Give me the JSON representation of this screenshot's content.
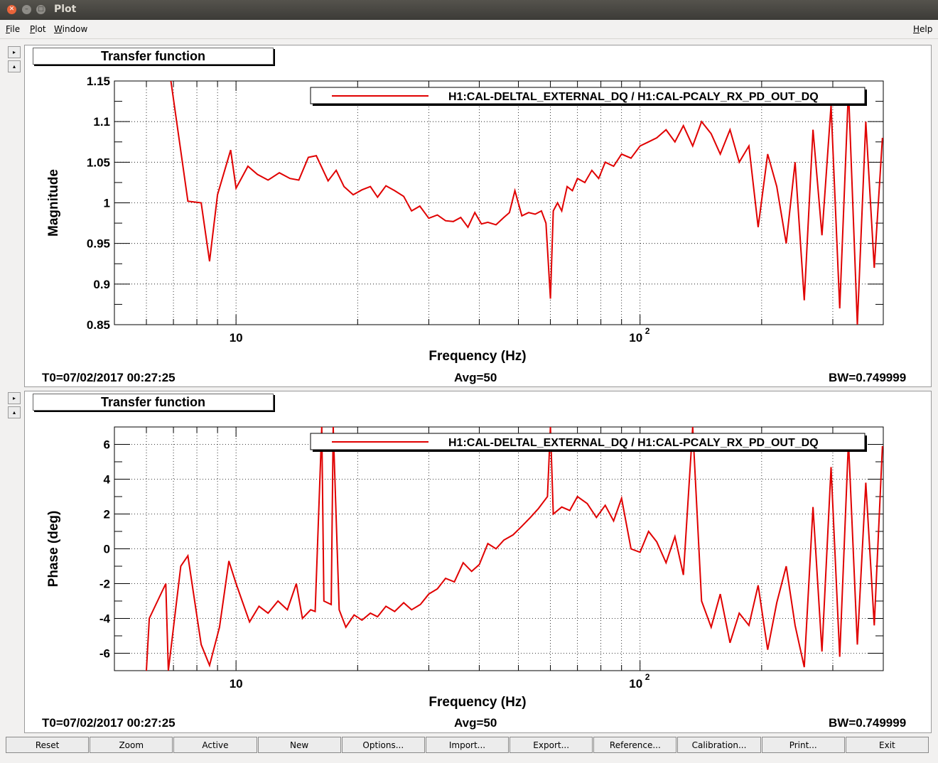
{
  "window": {
    "title": "Plot"
  },
  "menu": {
    "file": "File",
    "plot": "Plot",
    "window": "Window",
    "help": "Help"
  },
  "side_arrows": {
    "right": "▸",
    "up": "▴"
  },
  "colors": {
    "trace": "#e00000",
    "grid": "#000000",
    "background": "#ffffff"
  },
  "panels": [
    {
      "title": "Transfer function",
      "legend": "H1:CAL-DELTAL_EXTERNAL_DQ / H1:CAL-PCALY_RX_PD_OUT_DQ",
      "ylabel": "Magnitude",
      "xlabel": "Frequency (Hz)",
      "t0": "T0=07/02/2017 00:27:25",
      "avg": "Avg=50",
      "bw": "BW=0.749999",
      "ytick_labels": [
        "0.85",
        "0.9",
        "0.95",
        "1",
        "1.05",
        "1.1",
        "1.15"
      ],
      "xtick_labels": [
        "10",
        "10",
        "2"
      ]
    },
    {
      "title": "Transfer function",
      "legend": "H1:CAL-DELTAL_EXTERNAL_DQ / H1:CAL-PCALY_RX_PD_OUT_DQ",
      "ylabel": "Phase (deg)",
      "xlabel": "Frequency (Hz)",
      "t0": "T0=07/02/2017 00:27:25",
      "avg": "Avg=50",
      "bw": "BW=0.749999",
      "ytick_labels": [
        "-6",
        "-4",
        "-2",
        "0",
        "2",
        "4",
        "6"
      ],
      "xtick_labels": [
        "10",
        "10",
        "2"
      ]
    }
  ],
  "buttons": [
    "Reset",
    "Zoom",
    "Active",
    "New",
    "Options...",
    "Import...",
    "Export...",
    "Reference...",
    "Calibration...",
    "Print...",
    "Exit"
  ],
  "chart_data": [
    {
      "type": "line",
      "title": "Transfer function",
      "xlabel": "Frequency (Hz)",
      "ylabel": "Magnitude",
      "xscale": "log",
      "xlim": [
        5,
        400
      ],
      "ylim": [
        0.85,
        1.15
      ],
      "grid": true,
      "legend_position": "top-right",
      "series": [
        {
          "name": "H1:CAL-DELTAL_EXTERNAL_DQ / H1:CAL-PCALY_RX_PD_OUT_DQ",
          "x": [
            6.9,
            7.6,
            8.2,
            8.6,
            9.0,
            9.7,
            10.0,
            10.7,
            11.3,
            12.0,
            12.8,
            13.6,
            14.3,
            15.1,
            15.8,
            16.9,
            17.7,
            18.5,
            19.5,
            20.5,
            21.5,
            22.4,
            23.5,
            24.7,
            26.0,
            27.2,
            28.5,
            30.0,
            31.5,
            33.0,
            34.5,
            36.0,
            37.5,
            39.0,
            40.5,
            42.0,
            44.0,
            46.0,
            47.5,
            49.0,
            51.0,
            53.0,
            55.0,
            57.0,
            58.5,
            60.0,
            61.0,
            62.5,
            64.0,
            66.0,
            68.0,
            70.0,
            73.0,
            76.0,
            79.0,
            82.0,
            86.0,
            90.0,
            95.0,
            100.0,
            105.0,
            110.0,
            116.0,
            122.0,
            128.0,
            135.0,
            142.0,
            150.0,
            158.0,
            167.0,
            176.0,
            186.0,
            196.0,
            207.0,
            218.0,
            230.0,
            242.0,
            255.0,
            268.0,
            282.0,
            297.0,
            312.0,
            328.0,
            345.0,
            362.0,
            380.0,
            398.0
          ],
          "values": [
            1.15,
            1.002,
            1.0,
            0.928,
            1.01,
            1.065,
            1.018,
            1.045,
            1.035,
            1.028,
            1.037,
            1.03,
            1.028,
            1.056,
            1.058,
            1.027,
            1.04,
            1.02,
            1.01,
            1.016,
            1.02,
            1.007,
            1.021,
            1.015,
            1.008,
            0.99,
            0.996,
            0.981,
            0.985,
            0.978,
            0.977,
            0.982,
            0.97,
            0.988,
            0.974,
            0.976,
            0.973,
            0.982,
            0.988,
            1.015,
            0.984,
            0.988,
            0.986,
            0.99,
            0.975,
            0.882,
            0.99,
            1.0,
            0.99,
            1.02,
            1.015,
            1.03,
            1.025,
            1.04,
            1.03,
            1.05,
            1.045,
            1.06,
            1.055,
            1.07,
            1.075,
            1.08,
            1.09,
            1.075,
            1.095,
            1.07,
            1.1,
            1.085,
            1.06,
            1.09,
            1.05,
            1.07,
            0.97,
            1.06,
            1.02,
            0.95,
            1.05,
            0.88,
            1.09,
            0.96,
            1.12,
            0.87,
            1.14,
            0.85,
            1.1,
            0.92,
            1.08
          ]
        }
      ]
    },
    {
      "type": "line",
      "title": "Transfer function",
      "xlabel": "Frequency (Hz)",
      "ylabel": "Phase (deg)",
      "xscale": "log",
      "xlim": [
        5,
        400
      ],
      "ylim": [
        -7,
        7
      ],
      "grid": true,
      "legend_position": "top-right",
      "series": [
        {
          "name": "H1:CAL-DELTAL_EXTERNAL_DQ / H1:CAL-PCALY_RX_PD_OUT_DQ",
          "x": [
            6.0,
            6.1,
            6.7,
            6.8,
            7.3,
            7.6,
            8.2,
            8.6,
            9.1,
            9.6,
            10.0,
            10.8,
            11.4,
            12.0,
            12.7,
            13.4,
            14.1,
            14.6,
            15.3,
            15.7,
            16.3,
            16.5,
            17.2,
            17.4,
            18.0,
            18.7,
            19.6,
            20.5,
            21.5,
            22.4,
            23.5,
            24.7,
            26.0,
            27.2,
            28.6,
            30.0,
            31.5,
            33.0,
            34.7,
            36.5,
            38.3,
            40.0,
            42.0,
            44.0,
            46.0,
            48.5,
            51.0,
            53.5,
            56.0,
            59.0,
            60.0,
            61.0,
            64.0,
            67.0,
            70.0,
            74.0,
            78.0,
            82.0,
            86.0,
            90.0,
            95.0,
            100.0,
            105.0,
            110.0,
            116.0,
            122.0,
            128.0,
            135.0,
            142.0,
            150.0,
            158.0,
            167.0,
            176.0,
            186.0,
            196.0,
            207.0,
            218.0,
            230.0,
            242.0,
            255.0,
            268.0,
            282.0,
            297.0,
            312.0,
            328.0,
            345.0,
            362.0,
            380.0,
            398.0
          ],
          "values": [
            -7.0,
            -4.0,
            -2.0,
            -7.0,
            -1.0,
            -0.4,
            -5.5,
            -6.7,
            -4.5,
            -0.7,
            -2.0,
            -4.2,
            -3.3,
            -3.7,
            -3.0,
            -3.5,
            -2.0,
            -4.0,
            -3.5,
            -3.6,
            7.0,
            -3.0,
            -3.2,
            7.0,
            -3.5,
            -4.5,
            -3.8,
            -4.1,
            -3.7,
            -3.9,
            -3.3,
            -3.6,
            -3.1,
            -3.5,
            -3.2,
            -2.6,
            -2.3,
            -1.7,
            -1.9,
            -0.8,
            -1.3,
            -0.9,
            0.3,
            0.0,
            0.5,
            0.8,
            1.3,
            1.8,
            2.3,
            3.0,
            7.0,
            2.0,
            2.4,
            2.2,
            3.0,
            2.6,
            1.8,
            2.5,
            1.6,
            2.9,
            0.0,
            -0.2,
            1.0,
            0.4,
            -0.8,
            0.7,
            -1.5,
            7.0,
            -3.0,
            -4.5,
            -2.6,
            -5.4,
            -3.7,
            -4.4,
            -2.1,
            -5.8,
            -3.1,
            -1.0,
            -4.4,
            -6.8,
            2.4,
            -5.9,
            4.7,
            -6.2,
            6.2,
            -5.5,
            3.8,
            -4.4,
            5.9
          ]
        }
      ]
    }
  ]
}
